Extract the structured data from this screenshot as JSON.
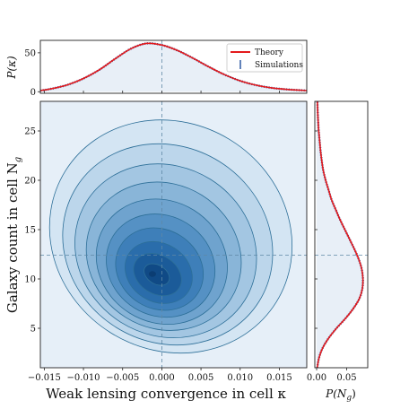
{
  "chart_data": [
    {
      "type": "area",
      "panel": "top-marginal",
      "ylabel": "P(κ)",
      "x_range": [
        -0.0155,
        0.0185
      ],
      "ylim": [
        -2,
        66
      ],
      "y_ticks": [
        0,
        50
      ],
      "x_ticks": [
        -0.015,
        -0.01,
        -0.005,
        0.0,
        0.005,
        0.01,
        0.015
      ],
      "reference_line_x": 0.0,
      "series": [
        {
          "name": "Theory",
          "color": "#e41a1c",
          "x": [
            -0.0155,
            -0.014,
            -0.012,
            -0.01,
            -0.008,
            -0.006,
            -0.004,
            -0.002,
            0.0,
            0.002,
            0.004,
            0.006,
            0.008,
            0.01,
            0.012,
            0.014,
            0.016,
            0.0185
          ],
          "y": [
            1.5,
            4,
            9,
            17,
            28,
            42,
            55,
            62,
            60,
            53,
            43,
            32,
            22,
            14,
            8.5,
            5,
            3,
            1.5
          ]
        },
        {
          "name": "Simulations",
          "color": "#1f4e9c",
          "x": [
            -0.0155,
            -0.014,
            -0.012,
            -0.01,
            -0.008,
            -0.006,
            -0.004,
            -0.002,
            0.0,
            0.002,
            0.004,
            0.006,
            0.008,
            0.01,
            0.012,
            0.014,
            0.016,
            0.0185
          ],
          "y": [
            1.5,
            4,
            9,
            17,
            28,
            42,
            55,
            62,
            60,
            53,
            43,
            32,
            22,
            14,
            8.5,
            5,
            3,
            1.5
          ]
        }
      ],
      "legend": {
        "placement": "top-right",
        "entries": [
          "Theory",
          "Simulations"
        ]
      }
    },
    {
      "type": "heatmap",
      "panel": "joint-contour",
      "xlabel": "Weak lensing convergence in cell κ",
      "ylabel": "Galaxy count in cell N_g",
      "xlim": [
        -0.0155,
        0.0185
      ],
      "ylim": [
        1,
        28
      ],
      "x_ticks": [
        -0.015,
        -0.01,
        -0.005,
        0.0,
        0.005,
        0.01,
        0.015
      ],
      "x_tick_labels": [
        "−0.015",
        "−0.010",
        "−0.005",
        "0.000",
        "0.005",
        "0.010",
        "0.015"
      ],
      "y_ticks": [
        5,
        10,
        15,
        20,
        25
      ],
      "reference_lines": {
        "x": 0.0,
        "y": 12.4
      },
      "peak": {
        "kappa": -0.0012,
        "N_g": 10.5
      },
      "contour_levels": 10,
      "contours": [
        {
          "kappa_min": -0.0147,
          "kappa_max": 0.017,
          "Ng_min": 2.8,
          "Ng_max": 25.8
        },
        {
          "kappa_min": -0.013,
          "kappa_max": 0.0145,
          "Ng_min": 3.6,
          "Ng_max": 23.4
        },
        {
          "kappa_min": -0.0114,
          "kappa_max": 0.0124,
          "Ng_min": 4.3,
          "Ng_max": 21.4
        },
        {
          "kappa_min": -0.0099,
          "kappa_max": 0.0104,
          "Ng_min": 5.0,
          "Ng_max": 19.6
        },
        {
          "kappa_min": -0.0086,
          "kappa_max": 0.0086,
          "Ng_min": 5.6,
          "Ng_max": 17.9
        },
        {
          "kappa_min": -0.0073,
          "kappa_max": 0.007,
          "Ng_min": 6.3,
          "Ng_max": 16.4
        },
        {
          "kappa_min": -0.0061,
          "kappa_max": 0.0055,
          "Ng_min": 7.0,
          "Ng_max": 15.0
        },
        {
          "kappa_min": -0.0049,
          "kappa_max": 0.0041,
          "Ng_min": 7.7,
          "Ng_max": 13.6
        },
        {
          "kappa_min": -0.0038,
          "kappa_max": 0.0027,
          "Ng_min": 8.5,
          "Ng_max": 12.4
        },
        {
          "kappa_min": -0.0024,
          "kappa_max": 0.0011,
          "Ng_min": 9.5,
          "Ng_max": 11.4
        }
      ]
    },
    {
      "type": "area",
      "panel": "right-marginal",
      "xlabel": "P(N_g)",
      "x_range": [
        -0.003,
        0.085
      ],
      "x_ticks": [
        0.0,
        0.05
      ],
      "x_tick_labels": [
        "0.00",
        "0.05"
      ],
      "y_range": [
        1,
        28
      ],
      "reference_line_y": 12.4,
      "series": [
        {
          "name": "Theory",
          "color": "#e41a1c",
          "y": [
            1,
            2,
            3,
            4,
            5,
            6,
            7,
            8,
            9,
            10,
            11,
            12,
            13,
            14,
            15,
            16,
            17,
            18,
            19,
            20,
            21,
            22,
            23,
            24,
            25,
            26,
            27,
            28
          ],
          "x": [
            0.001,
            0.004,
            0.01,
            0.02,
            0.033,
            0.048,
            0.061,
            0.071,
            0.076,
            0.077,
            0.075,
            0.07,
            0.063,
            0.055,
            0.047,
            0.039,
            0.032,
            0.025,
            0.02,
            0.015,
            0.011,
            0.0085,
            0.0065,
            0.005,
            0.0035,
            0.0025,
            0.0018,
            0.0012
          ]
        },
        {
          "name": "Simulations",
          "color": "#1f4e9c",
          "y": [
            1,
            2,
            3,
            4,
            5,
            6,
            7,
            8,
            9,
            10,
            11,
            12,
            13,
            14,
            15,
            16,
            17,
            18,
            19,
            20,
            21,
            22,
            23,
            24,
            25,
            26,
            27,
            28
          ],
          "x": [
            0.001,
            0.004,
            0.01,
            0.02,
            0.033,
            0.048,
            0.061,
            0.071,
            0.076,
            0.077,
            0.075,
            0.07,
            0.063,
            0.055,
            0.047,
            0.039,
            0.032,
            0.025,
            0.02,
            0.015,
            0.011,
            0.0085,
            0.0065,
            0.005,
            0.0035,
            0.0025,
            0.0018,
            0.0012
          ]
        }
      ]
    }
  ],
  "labels": {
    "top_ylabel": "P(κ)",
    "main_xlabel": "Weak lensing convergence in cell κ",
    "main_ylabel": "Galaxy count in cell N",
    "main_ylabel_sub": "g",
    "right_xlabel": "P(N",
    "right_xlabel_sub": "g",
    "right_xlabel_close": ")"
  },
  "legend": {
    "theory": "Theory",
    "simulations": "Simulations"
  },
  "colors": {
    "theory": "#e41a1c",
    "simulations": "#1f4e9c",
    "marginal_fill": "#e8eff7",
    "reference_line": "#5f88a6",
    "contour_edge": "#2d6f98",
    "contour_fills": [
      "#e6eff8",
      "#d4e5f3",
      "#bcd6eb",
      "#a3c6e2",
      "#89b5d8",
      "#6fa3ce",
      "#5591c4",
      "#3e7fb9",
      "#2a6dab",
      "#1b5b99",
      "#104a86"
    ]
  }
}
